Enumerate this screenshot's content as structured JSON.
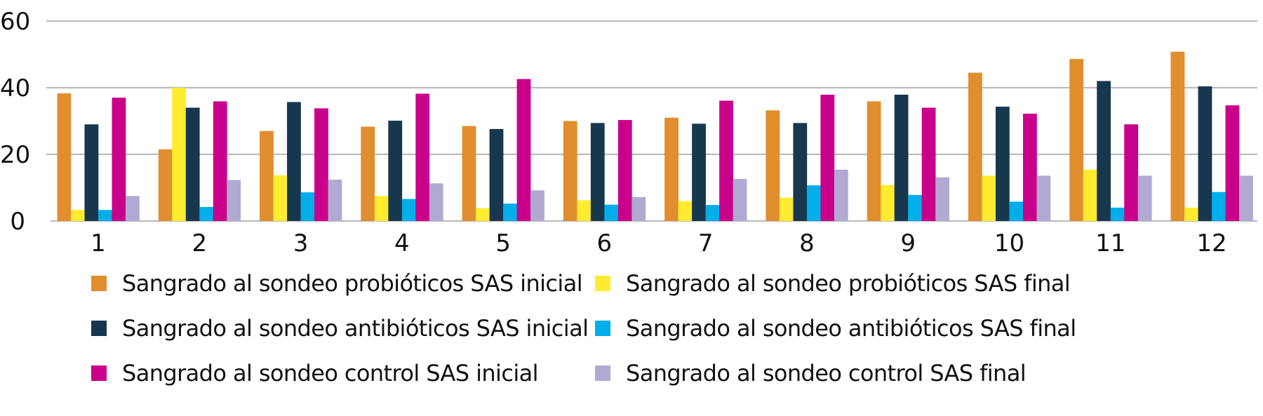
{
  "chart_data": {
    "type": "bar",
    "title": "",
    "xlabel": "",
    "ylabel": "",
    "ylim": [
      0,
      60
    ],
    "yticks": [
      0,
      20,
      40,
      60
    ],
    "grid": true,
    "legend_position": "bottom",
    "categories": [
      "1",
      "2",
      "3",
      "4",
      "5",
      "6",
      "7",
      "8",
      "9",
      "10",
      "11",
      "12"
    ],
    "series": [
      {
        "name": "Sangrado al sondeo probióticos SAS inicial",
        "color": "#E08E2E",
        "values": [
          38.3,
          21.5,
          27.0,
          28.3,
          28.5,
          30.0,
          31.0,
          33.2,
          35.9,
          44.5,
          48.6,
          50.8
        ]
      },
      {
        "name": "Sangrado al sondeo probióticos SAS final",
        "color": "#FFEC2E",
        "values": [
          3.3,
          40.0,
          13.7,
          7.5,
          3.8,
          6.2,
          6.0,
          7.0,
          10.8,
          13.6,
          15.4,
          4.0
        ]
      },
      {
        "name": "Sangrado al sondeo antibióticos SAS inicial",
        "color": "#17374F",
        "values": [
          29.0,
          34.0,
          35.7,
          30.1,
          27.6,
          29.4,
          29.2,
          29.4,
          37.9,
          34.3,
          42.0,
          40.4
        ]
      },
      {
        "name": "Sangrado al sondeo antibióticos SAS final",
        "color": "#00AEEA",
        "values": [
          3.3,
          4.2,
          8.6,
          6.6,
          5.2,
          4.9,
          4.8,
          10.7,
          7.8,
          5.8,
          4.0,
          8.7
        ]
      },
      {
        "name": "Sangrado al sondeo control SAS inicial",
        "color": "#C9008A",
        "values": [
          37.0,
          35.9,
          33.8,
          38.2,
          42.6,
          30.3,
          36.1,
          37.9,
          34.0,
          32.2,
          29.0,
          34.7
        ]
      },
      {
        "name": "Sangrado al sondeo control SAS final",
        "color": "#B1A9D2",
        "values": [
          7.5,
          12.3,
          12.4,
          11.3,
          9.2,
          7.2,
          12.6,
          15.4,
          13.1,
          13.6,
          13.6,
          13.6
        ]
      }
    ],
    "legend_order": [
      0,
      1,
      2,
      3,
      4,
      5
    ]
  }
}
